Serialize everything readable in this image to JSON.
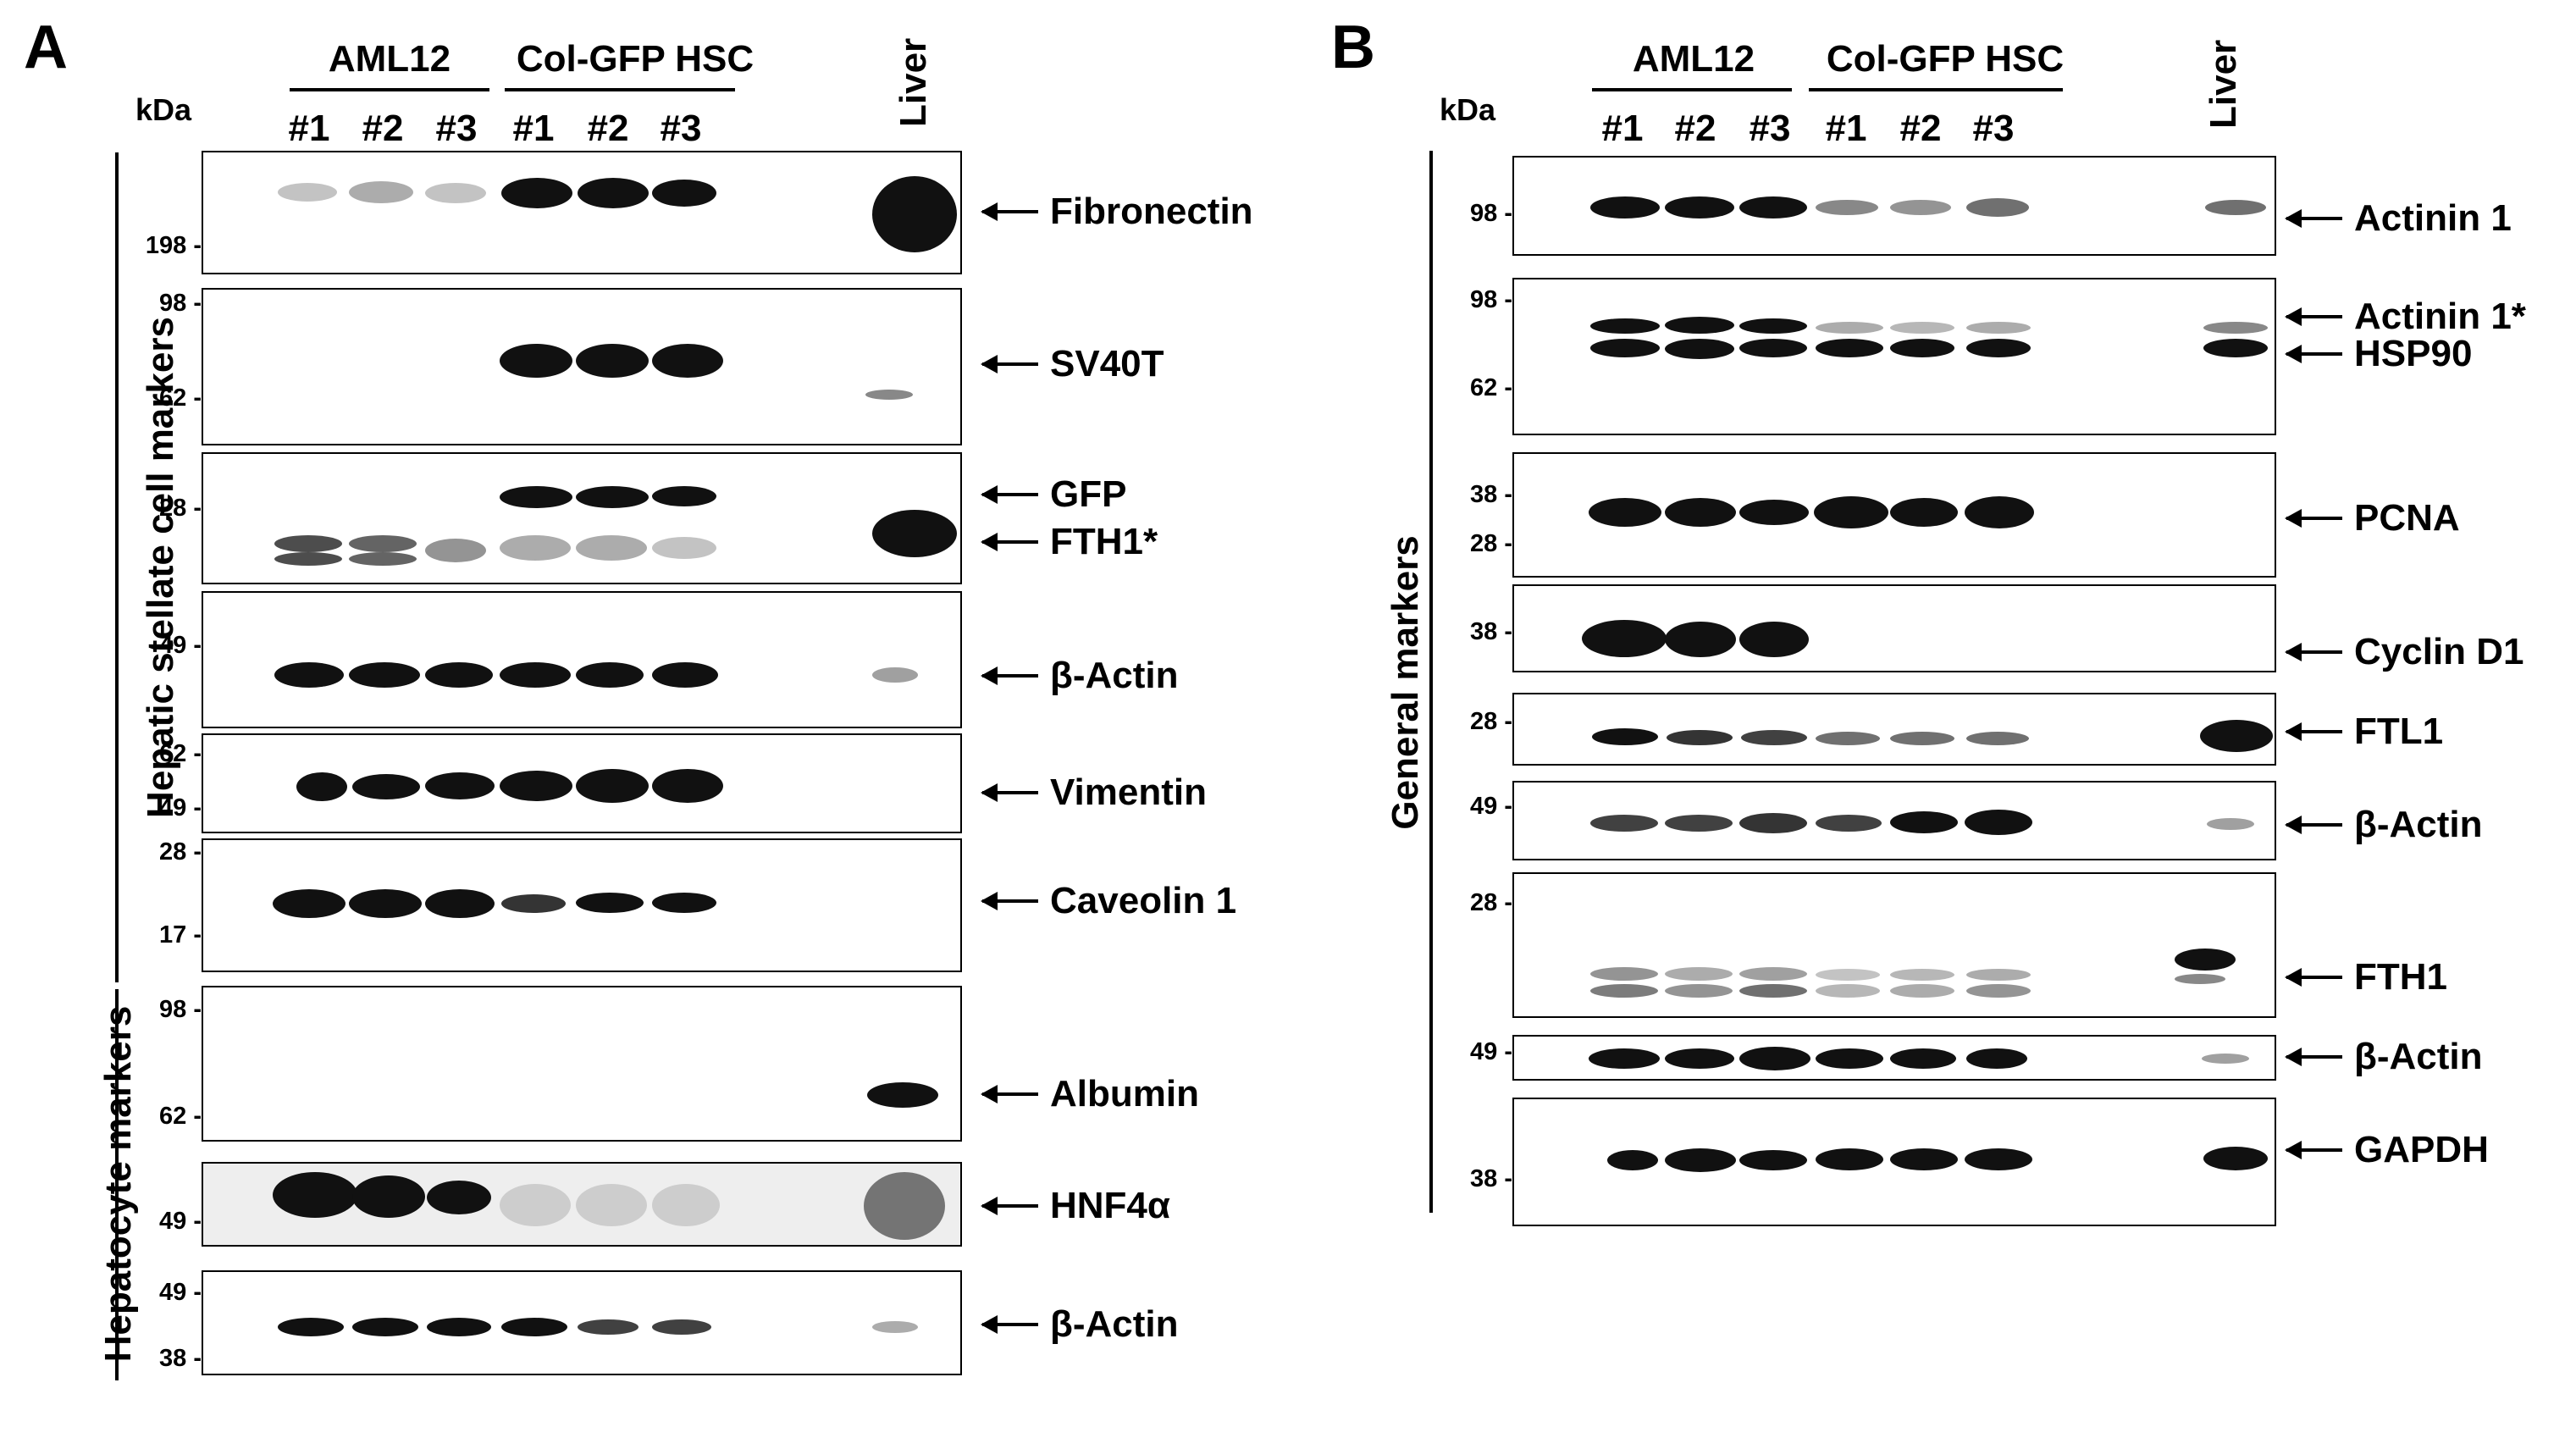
{
  "panels": {
    "a": {
      "letter": "A",
      "kda": "kDa",
      "group1": "AML12",
      "group2": "Col-GFP HSC",
      "lanes": [
        "#1",
        "#2",
        "#3",
        "#1",
        "#2",
        "#3"
      ],
      "liver": "Liver",
      "side1": "Hepatic stellate cell markers",
      "side2": "Hepatocyte markers",
      "mw": [
        "198",
        "98",
        "62",
        "28",
        "49",
        "62",
        "49",
        "28",
        "17",
        "98",
        "62",
        "49",
        "49",
        "38"
      ],
      "labels": [
        "Fibronectin",
        "SV40T",
        "GFP",
        "FTH1*",
        "β-Actin",
        "Vimentin",
        "Caveolin 1",
        "Albumin",
        "HNF4α",
        "β-Actin"
      ]
    },
    "b": {
      "letter": "B",
      "kda": "kDa",
      "group1": "AML12",
      "group2": "Col-GFP HSC",
      "lanes": [
        "#1",
        "#2",
        "#3",
        "#1",
        "#2",
        "#3"
      ],
      "liver": "Liver",
      "side1": "General markers",
      "mw": [
        "98",
        "98",
        "62",
        "38",
        "28",
        "38",
        "28",
        "49",
        "28",
        "49",
        "38"
      ],
      "labels": [
        "Actinin 1",
        "Actinin 1*",
        "HSP90",
        "PCNA",
        "Cyclin D1",
        "FTL1",
        "β-Actin",
        "FTH1",
        "β-Actin",
        "GAPDH"
      ]
    }
  }
}
